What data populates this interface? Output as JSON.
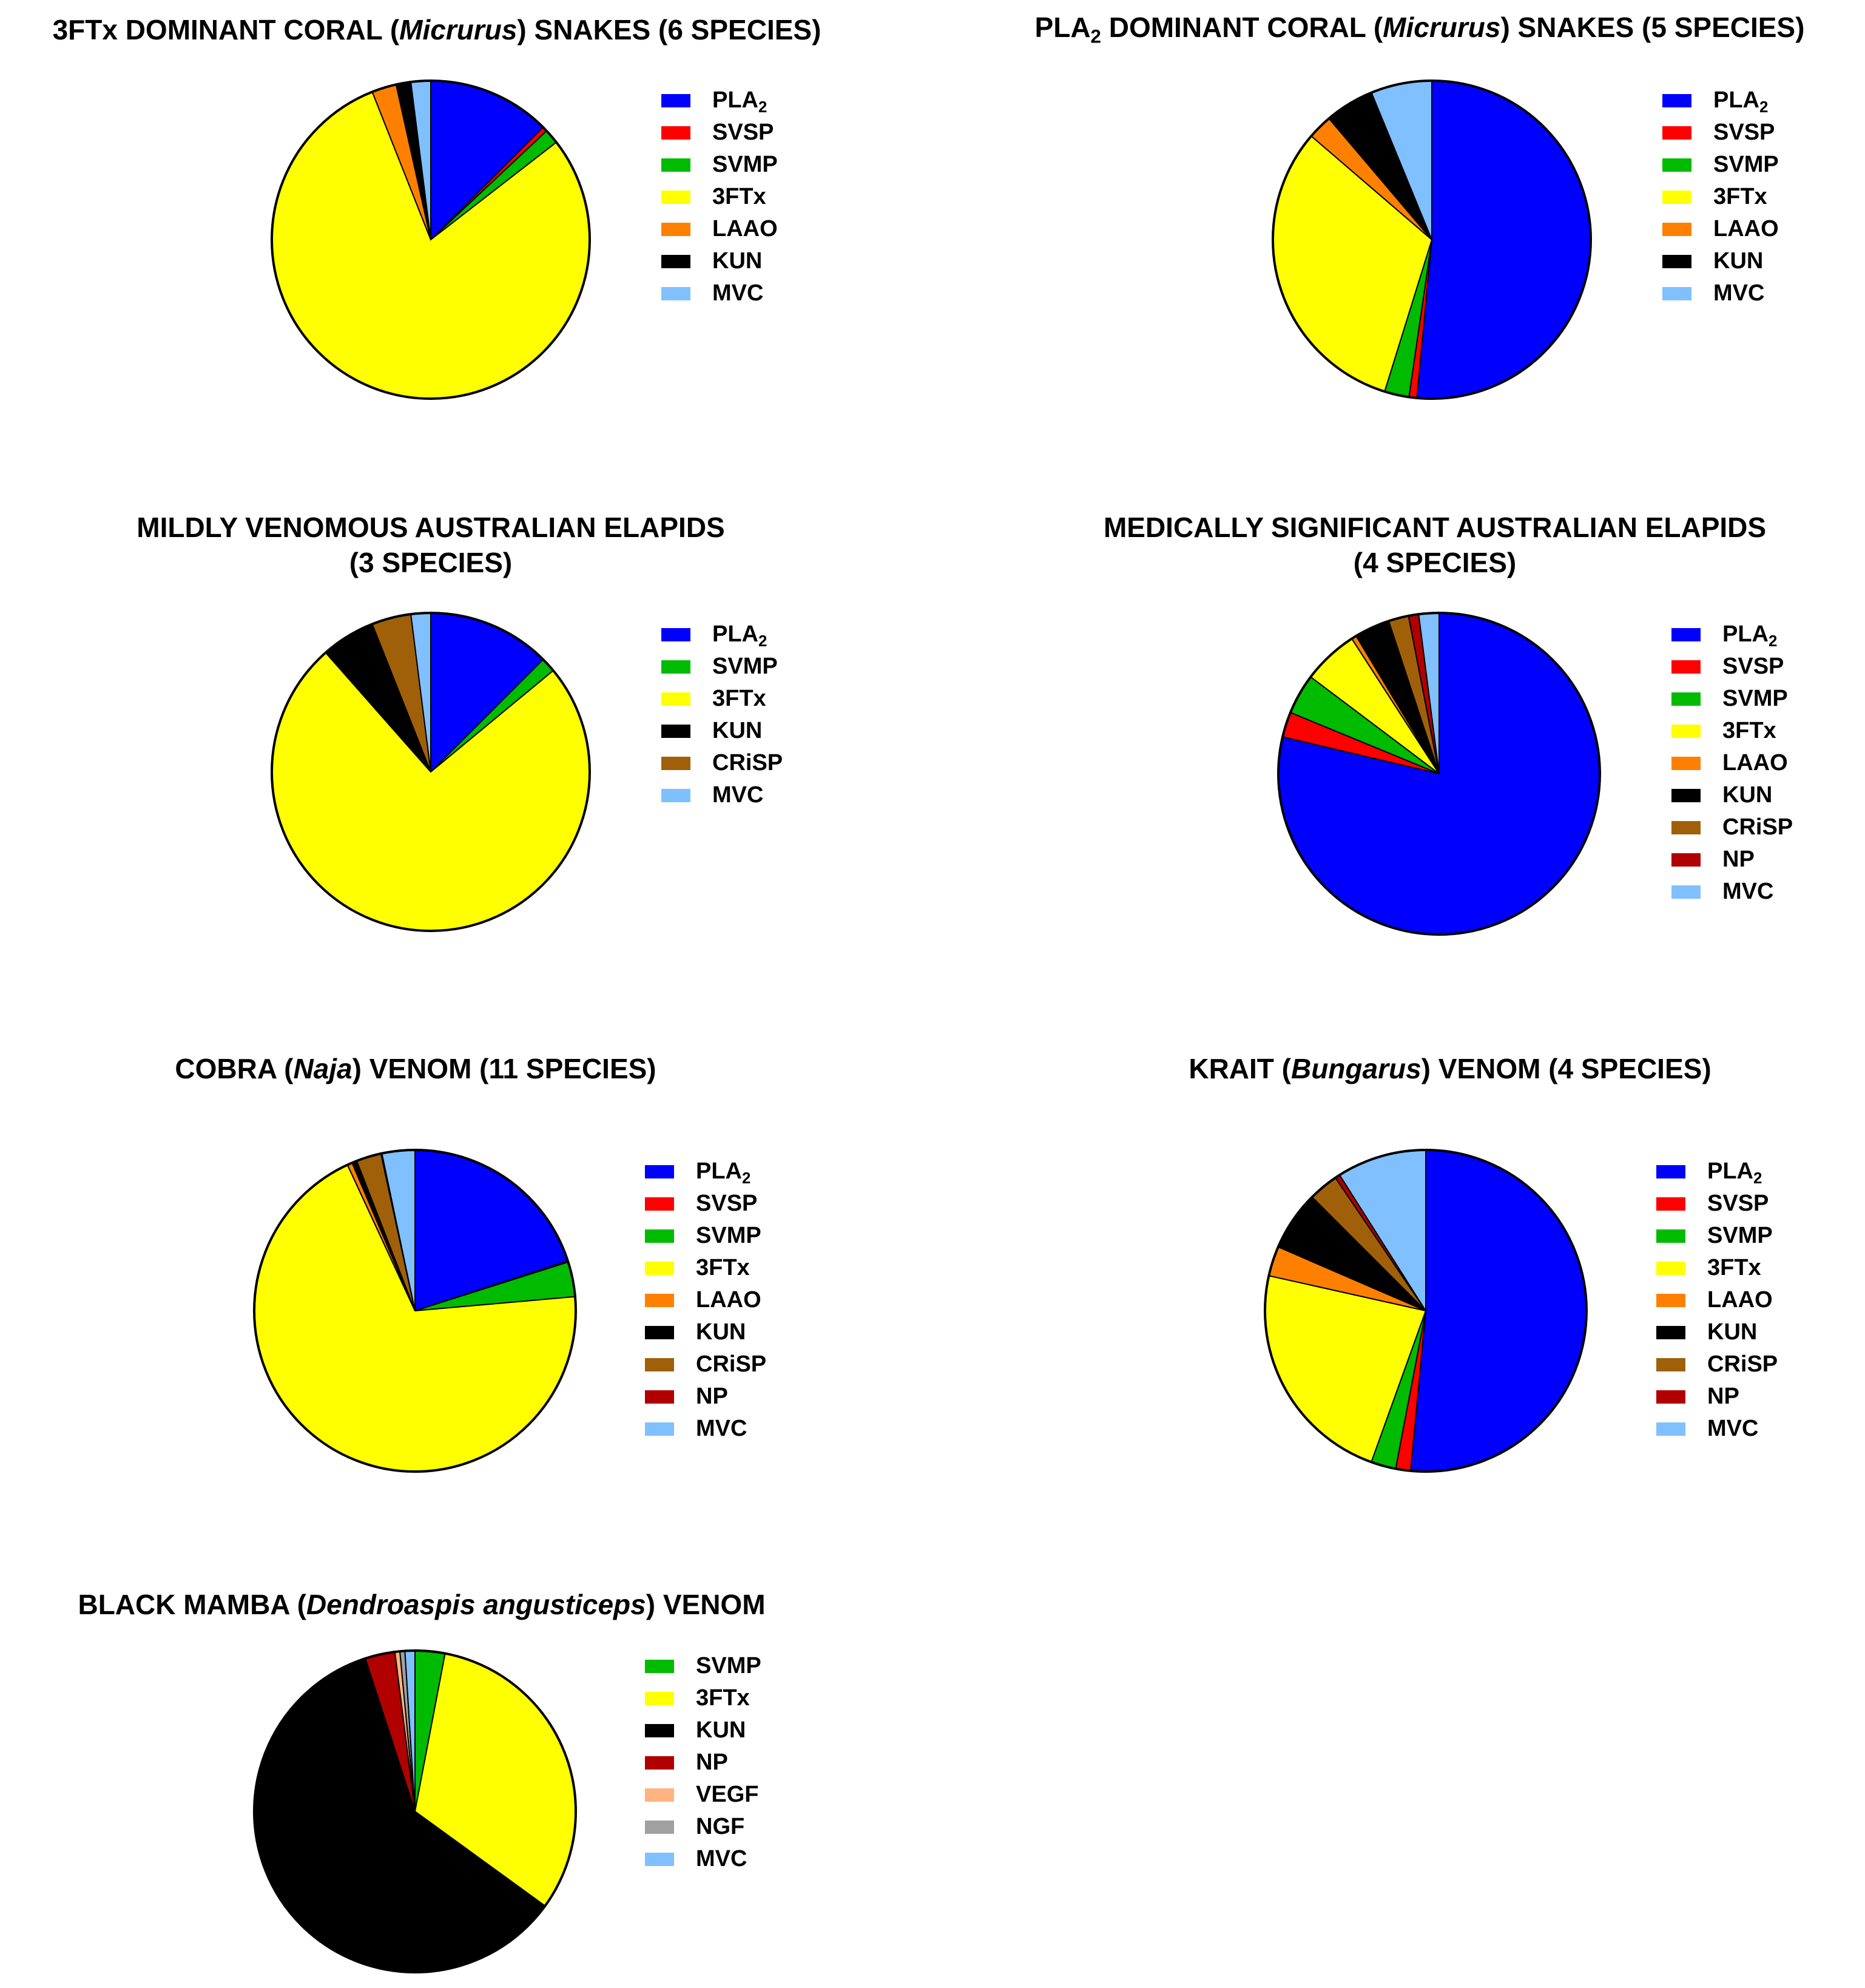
{
  "colors": {
    "PLA2": "#0000FF",
    "SVSP": "#FF0000",
    "SVMP": "#00BB00",
    "3FTx": "#FFFF00",
    "LAAO": "#FF8000",
    "KUN": "#000000",
    "CRiSP": "#A0600A",
    "NP": "#B00000",
    "VEGF": "#FFB380",
    "NGF": "#A0A0A0",
    "MVC": "#80C0FF"
  },
  "panels": [
    {
      "title": {
        "pre": "3FTx DOMINANT CORAL (",
        "italic": "Micrurus",
        "post": ") SNAKES (6 SPECIES)",
        "line2": ""
      },
      "chart_data": {
        "type": "pie",
        "unit": "%",
        "slices": [
          {
            "label": "PLA2",
            "value": 12.5
          },
          {
            "label": "SVSP",
            "value": 0.5
          },
          {
            "label": "SVMP",
            "value": 1.5
          },
          {
            "label": "3FTx",
            "value": 79.5
          },
          {
            "label": "LAAO",
            "value": 2.5
          },
          {
            "label": "KUN",
            "value": 1.5
          },
          {
            "label": "MVC",
            "value": 2.0
          }
        ],
        "legend": [
          "PLA2",
          "SVSP",
          "SVMP",
          "3FTx",
          "LAAO",
          "KUN",
          "MVC"
        ]
      }
    },
    {
      "title": {
        "pre": "PLA",
        "sub": "2",
        "pre2": " DOMINANT CORAL (",
        "italic": "Micrurus",
        "post": ") SNAKES (5 SPECIES)",
        "line2": ""
      },
      "chart_data": {
        "type": "pie",
        "unit": "%",
        "slices": [
          {
            "label": "PLA2",
            "value": 51.5
          },
          {
            "label": "SVSP",
            "value": 0.8
          },
          {
            "label": "SVMP",
            "value": 2.5
          },
          {
            "label": "3FTx",
            "value": 31.5
          },
          {
            "label": "LAAO",
            "value": 2.5
          },
          {
            "label": "KUN",
            "value": 5.0
          },
          {
            "label": "MVC",
            "value": 6.2
          }
        ],
        "legend": [
          "PLA2",
          "SVSP",
          "SVMP",
          "3FTx",
          "LAAO",
          "KUN",
          "MVC"
        ]
      }
    },
    {
      "title": {
        "pre": "MILDLY VENOMOUS AUSTRALIAN ELAPIDS",
        "italic": "",
        "post": "",
        "line2": "(3 SPECIES)"
      },
      "chart_data": {
        "type": "pie",
        "unit": "%",
        "slices": [
          {
            "label": "PLA2",
            "value": 12.5
          },
          {
            "label": "SVMP",
            "value": 1.5
          },
          {
            "label": "3FTx",
            "value": 74.5
          },
          {
            "label": "KUN",
            "value": 5.5
          },
          {
            "label": "CRiSP",
            "value": 4.0
          },
          {
            "label": "MVC",
            "value": 2.0
          }
        ],
        "legend": [
          "PLA2",
          "SVMP",
          "3FTx",
          "KUN",
          "CRiSP",
          "MVC"
        ]
      }
    },
    {
      "title": {
        "pre": "MEDICALLY SIGNIFICANT AUSTRALIAN ELAPIDS",
        "italic": "",
        "post": "",
        "line2": "(4 SPECIES)"
      },
      "chart_data": {
        "type": "pie",
        "unit": "%",
        "slices": [
          {
            "label": "PLA2",
            "value": 77.5
          },
          {
            "label": "SVSP",
            "value": 2.5
          },
          {
            "label": "SVMP",
            "value": 4.0
          },
          {
            "label": "3FTx",
            "value": 5.5
          },
          {
            "label": "LAAO",
            "value": 0.5
          },
          {
            "label": "KUN",
            "value": 3.5
          },
          {
            "label": "CRiSP",
            "value": 2.0
          },
          {
            "label": "NP",
            "value": 1.0
          },
          {
            "label": "MVC",
            "value": 2.0
          }
        ],
        "legend": [
          "PLA2",
          "SVSP",
          "SVMP",
          "3FTx",
          "LAAO",
          "KUN",
          "CRiSP",
          "NP",
          "MVC"
        ]
      }
    },
    {
      "title": {
        "pre": "COBRA (",
        "italic": "Naja",
        "post": ") VENOM (11 SPECIES)",
        "line2": ""
      },
      "chart_data": {
        "type": "pie",
        "unit": "%",
        "slices": [
          {
            "label": "PLA2",
            "value": 20.0
          },
          {
            "label": "SVSP",
            "value": 0.1
          },
          {
            "label": "SVMP",
            "value": 3.5
          },
          {
            "label": "3FTx",
            "value": 69.5
          },
          {
            "label": "LAAO",
            "value": 0.5
          },
          {
            "label": "KUN",
            "value": 0.5
          },
          {
            "label": "CRiSP",
            "value": 2.5
          },
          {
            "label": "NP",
            "value": 0.1
          },
          {
            "label": "MVC",
            "value": 3.3
          }
        ],
        "legend": [
          "PLA2",
          "SVSP",
          "SVMP",
          "3FTx",
          "LAAO",
          "KUN",
          "CRiSP",
          "NP",
          "MVC"
        ]
      }
    },
    {
      "title": {
        "pre": "KRAIT (",
        "italic": "Bungarus",
        "post": ") VENOM (4 SPECIES)",
        "line2": ""
      },
      "chart_data": {
        "type": "pie",
        "unit": "%",
        "slices": [
          {
            "label": "PLA2",
            "value": 51.5
          },
          {
            "label": "SVSP",
            "value": 1.5
          },
          {
            "label": "SVMP",
            "value": 2.5
          },
          {
            "label": "3FTx",
            "value": 23.0
          },
          {
            "label": "LAAO",
            "value": 3.0
          },
          {
            "label": "KUN",
            "value": 6.0
          },
          {
            "label": "CRiSP",
            "value": 3.0
          },
          {
            "label": "NP",
            "value": 0.5
          },
          {
            "label": "MVC",
            "value": 9.0
          }
        ],
        "legend": [
          "PLA2",
          "SVSP",
          "SVMP",
          "3FTx",
          "LAAO",
          "KUN",
          "CRiSP",
          "NP",
          "MVC"
        ]
      }
    },
    {
      "title": {
        "pre": "BLACK MAMBA (",
        "italic": "Dendroaspis angusticeps",
        "post": ") VENOM",
        "line2": ""
      },
      "chart_data": {
        "type": "pie",
        "unit": "%",
        "slices": [
          {
            "label": "SVMP",
            "value": 3.0
          },
          {
            "label": "3FTx",
            "value": 32.0
          },
          {
            "label": "KUN",
            "value": 60.0
          },
          {
            "label": "NP",
            "value": 3.0
          },
          {
            "label": "VEGF",
            "value": 0.5
          },
          {
            "label": "NGF",
            "value": 0.5
          },
          {
            "label": "MVC",
            "value": 1.0
          }
        ],
        "legend": [
          "SVMP",
          "3FTx",
          "KUN",
          "NP",
          "VEGF",
          "NGF",
          "MVC"
        ]
      }
    }
  ]
}
